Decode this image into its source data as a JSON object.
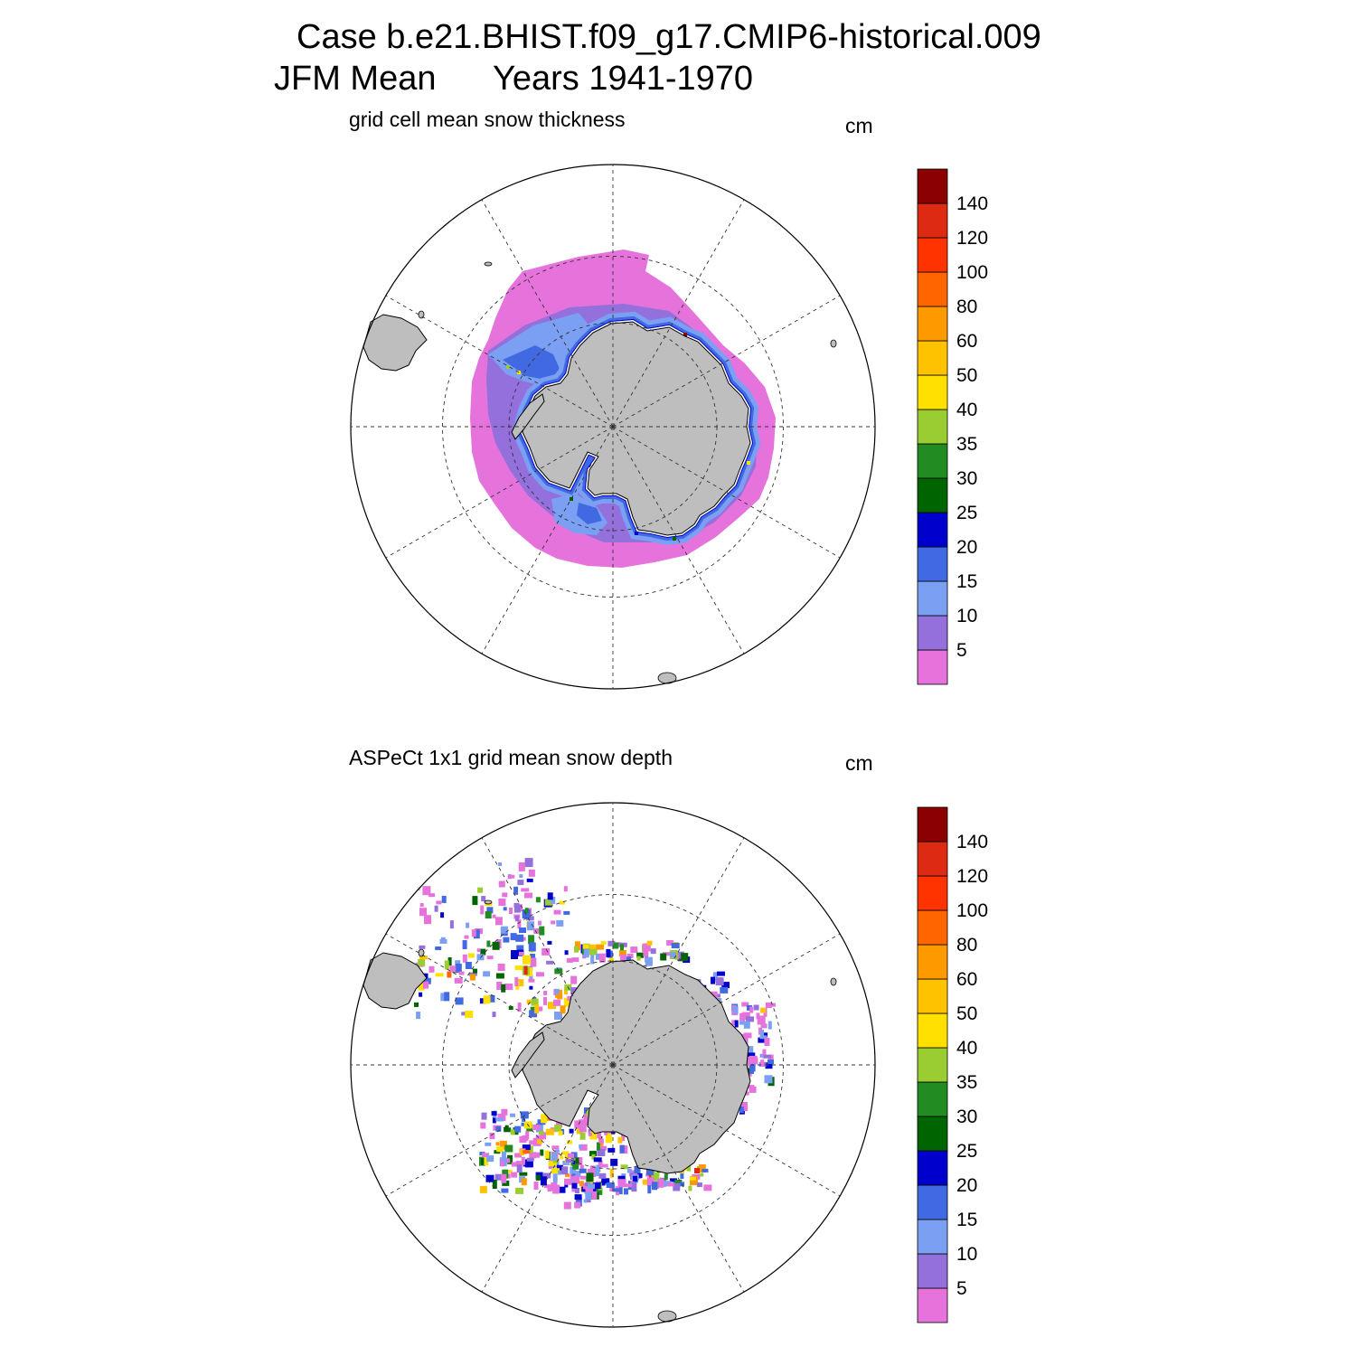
{
  "title": {
    "line1": "Case b.e21.BHIST.f09_g17.CMIP6-historical.009",
    "line2_left": "JFM Mean",
    "line2_right": "Years 1941-1970"
  },
  "colors": {
    "land": "#bebebe",
    "bins": [
      "#e673dc",
      "#9370db",
      "#7b9ff2",
      "#4169e1",
      "#0000cd",
      "#006400",
      "#228b22",
      "#9acd32",
      "#ffe000",
      "#ffc200",
      "#ff9900",
      "#ff6600",
      "#ff3300",
      "#dd2a12",
      "#8b0000"
    ]
  },
  "colorbar": {
    "labels": [
      "5",
      "10",
      "15",
      "20",
      "25",
      "30",
      "35",
      "40",
      "50",
      "60",
      "80",
      "100",
      "120",
      "140"
    ]
  },
  "panels": [
    {
      "title": "grid cell mean snow thickness",
      "units": "cm",
      "field": "model",
      "field_description": "Sea-ice snow thickness ring around Antarctica: mostly 0-5 cm, 5-20 cm in the Weddell and Ross seas and along the coast"
    },
    {
      "title": "ASPeCt 1x1 grid mean snow depth",
      "units": "cm",
      "field": "observations",
      "field_description": "Sparse ship-based observation cells, densest in the Weddell Sea, Ross Sea sector, east Antarctic coast and Bellingshausen region"
    }
  ]
}
